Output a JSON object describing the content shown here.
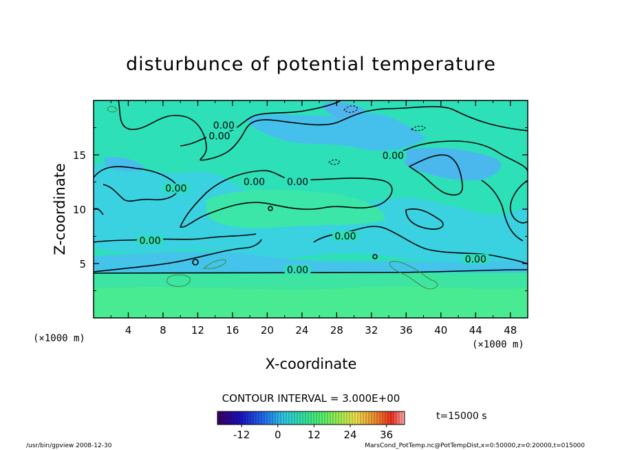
{
  "chart_data": {
    "type": "heatmap",
    "title": "disturbunce of potential temperature",
    "xlabel": "X-coordinate",
    "ylabel": "Z-coordinate",
    "x_unit_label_left": "(×1000 m)",
    "x_unit_label_right": "(×1000 m)",
    "xlim": [
      0,
      50
    ],
    "ylim": [
      0,
      20
    ],
    "x_ticks": [
      "4",
      "8",
      "12",
      "16",
      "20",
      "24",
      "28",
      "32",
      "36",
      "40",
      "44",
      "48"
    ],
    "y_ticks": [
      "5",
      "10",
      "15"
    ],
    "x_tick_values": [
      4,
      8,
      12,
      16,
      20,
      24,
      28,
      32,
      36,
      40,
      44,
      48
    ],
    "y_tick_values": [
      5,
      10,
      15
    ],
    "contour_interval_label": "CONTOUR INTERVAL = 3.000E+00",
    "contour_level_label": "0.00",
    "contour_labels": [
      {
        "x": 15,
        "z": 17.6,
        "text": "0.00"
      },
      {
        "x": 14.5,
        "z": 16.6,
        "text": "0.00"
      },
      {
        "x": 9.5,
        "z": 11.8,
        "text": "0.00"
      },
      {
        "x": 18.5,
        "z": 12.4,
        "text": "0.00"
      },
      {
        "x": 23.5,
        "z": 12.4,
        "text": "0.00"
      },
      {
        "x": 34.5,
        "z": 14.8,
        "text": "0.00"
      },
      {
        "x": 6.5,
        "z": 7,
        "text": "0.00"
      },
      {
        "x": 29,
        "z": 7.4,
        "text": "0.00"
      },
      {
        "x": 23.5,
        "z": 4.3,
        "text": "0.00"
      },
      {
        "x": 44,
        "z": 5.3,
        "text": "0.00"
      }
    ],
    "colorbar": {
      "ticks": [
        "-12",
        "0",
        "12",
        "24",
        "36"
      ],
      "tick_values": [
        -12,
        0,
        12,
        24,
        36
      ],
      "range": [
        -20,
        42
      ]
    },
    "time_label": "t=15000 s",
    "colors": {
      "background_field": "#2ee0b8",
      "negative_field": "#35c8e8",
      "positive_field": "#40ec9a",
      "contour_line": "#000000"
    }
  },
  "footer": {
    "left": "/usr/bin/gpview   2008-12-30",
    "right": "MarsCond_PotTemp.nc@PotTempDist,x=0:50000,z=0:20000,t=015000"
  }
}
